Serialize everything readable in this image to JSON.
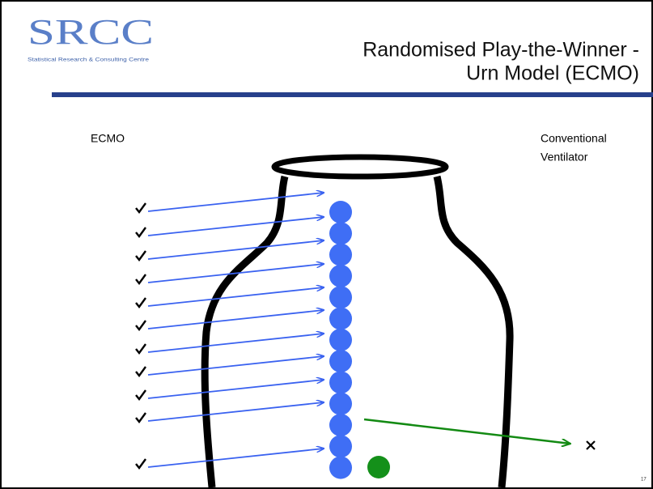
{
  "header": {
    "logo": "SRCC",
    "logo_subtitle": "Statistical Research & Consulting Centre",
    "title_lines": [
      "Randomised Play-the-Winner -",
      "Urn Model (ECMO)"
    ]
  },
  "labels": {
    "left": "ECMO",
    "right_lines": [
      "Conventional",
      "Ventilator"
    ]
  },
  "footer": {
    "page_number": "17"
  }
}
